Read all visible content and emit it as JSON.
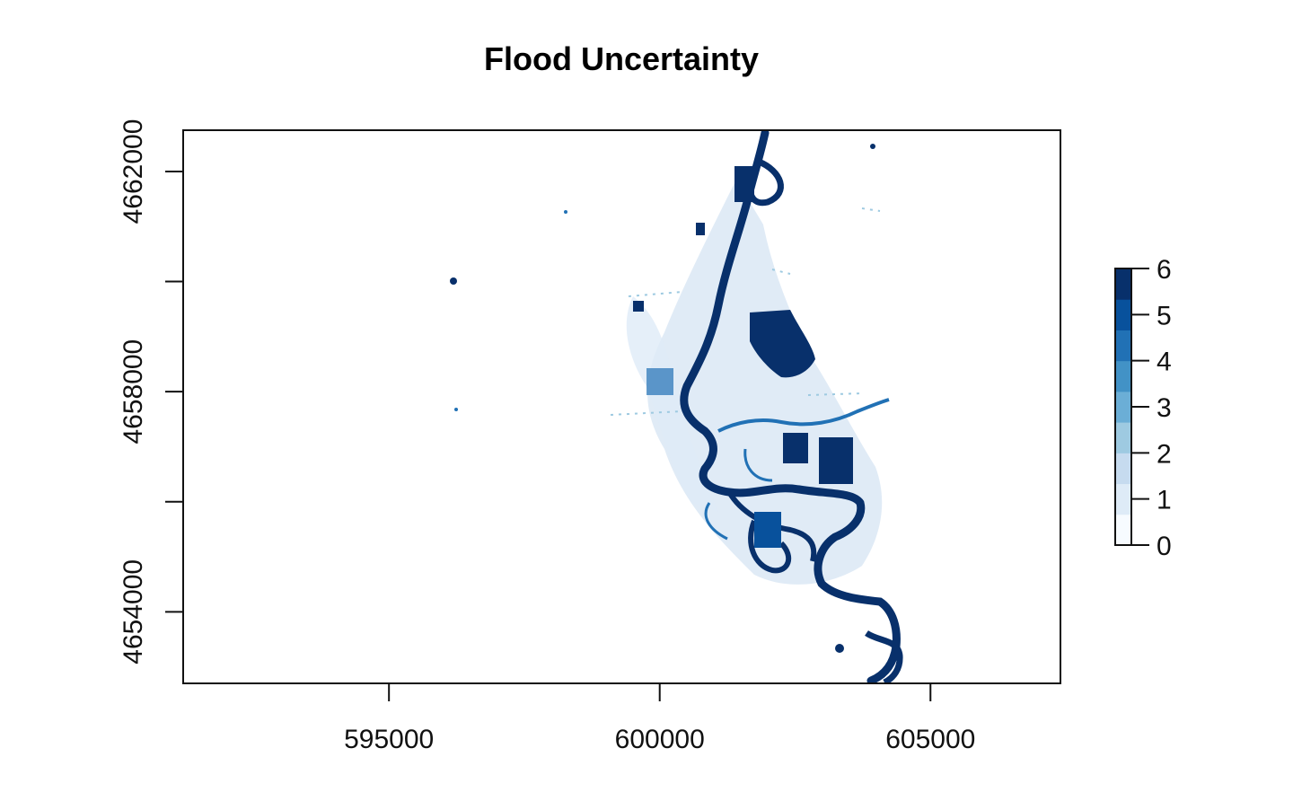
{
  "map": {
    "title": "Flood Uncertainty",
    "x_axis": {
      "ticks": [
        595000,
        600000,
        605000
      ],
      "tick_labels": [
        "595000",
        "600000",
        "605000"
      ],
      "range": [
        591200,
        607400
      ]
    },
    "y_axis": {
      "ticks": [
        4662000,
        4660000,
        4658000,
        4656000,
        4654000
      ],
      "tick_labels": [
        "4662000",
        "",
        "4658000",
        "",
        "4654000"
      ],
      "range": [
        4652700,
        4662750
      ]
    },
    "legend": {
      "min": 0,
      "max": 6,
      "tick_labels": [
        "6",
        "5",
        "4",
        "3",
        "2",
        "1",
        "0"
      ],
      "classes": [
        "#f7fbff",
        "#deebf7",
        "#c6dbef",
        "#9ecae1",
        "#6baed6",
        "#4292c6",
        "#2171b5",
        "#08519c",
        "#08306b"
      ]
    },
    "colors": {
      "flood_dark": "#08306b",
      "flood_mid": "#2171b5",
      "flood_light": "#c6dbef",
      "background": "#ffffff"
    }
  }
}
